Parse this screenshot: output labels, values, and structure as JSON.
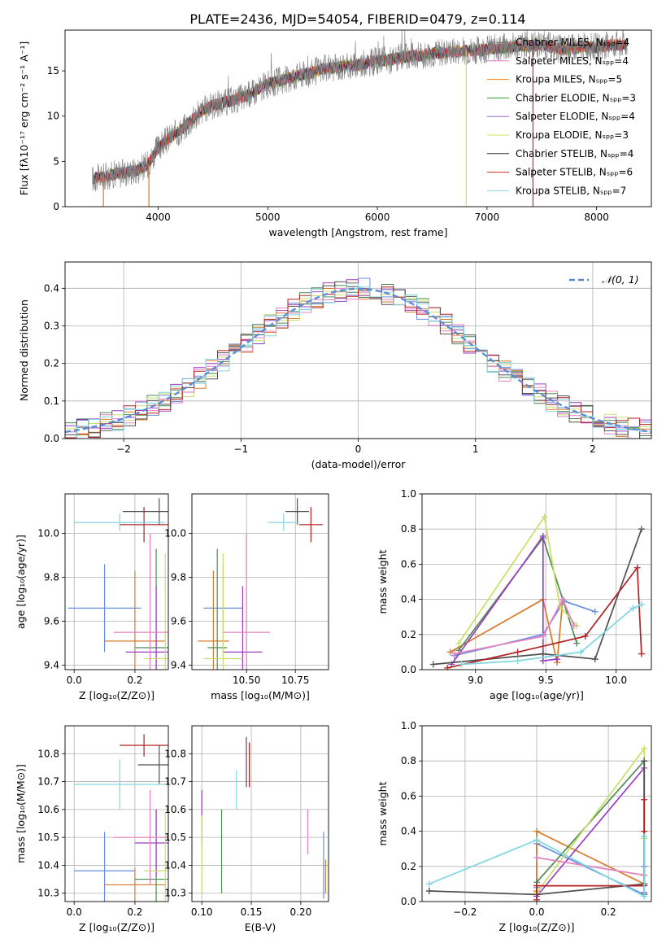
{
  "figure_title": "PLATE=2436, MJD=54054, FIBERID=0479, z=0.114",
  "colors": [
    "#888888",
    "#e377c2",
    "#ff7f0e",
    "#2ca02c",
    "#9467bd",
    "#d4e157",
    "#444444",
    "#d62728",
    "#7fd3e0"
  ],
  "ssp_colors": [
    "#6a8ee0",
    "#d97a28",
    "#4f8a55",
    "#9b3fc0",
    "#c8e06a",
    "#e680c0",
    "#505050",
    "#b22222",
    "#80d6e0"
  ],
  "chart_data": [
    {
      "id": "spectrum",
      "type": "line",
      "title": "PLATE=2436, MJD=54054, FIBERID=0479, z=0.114",
      "xlabel": "wavelength [Angstrom, rest frame]",
      "ylabel": "Flux [fλ10⁻¹⁷ erg cm⁻² s⁻¹ A⁻¹]",
      "xlim": [
        3150,
        8500
      ],
      "ylim": [
        0,
        19.5
      ],
      "xticks": [
        4000,
        5000,
        6000,
        7000,
        8000
      ],
      "yticks": [
        0,
        5,
        10,
        15
      ],
      "legend_position": "top-right",
      "legend": [
        "Chabrier MILES, Nₛₚₚ=4",
        "Salpeter MILES, Nₛₚₚ=4",
        "Kroupa MILES, Nₛₚₚ=5",
        "Chabrier ELODIE, Nₛₚₚ=3",
        "Salpeter ELODIE, Nₛₚₚ=4",
        "Kroupa ELODIE, Nₛₚₚ=3",
        "Chabrier STELIB, Nₛₚₚ=4",
        "Salpeter STELIB, Nₛₚₚ=6",
        "Kroupa STELIB, Nₛₚₚ=7"
      ],
      "series_colors": [
        "#808080",
        "#e377c2",
        "#ff7f0e",
        "#2ca02c",
        "#9467bd",
        "#d4e157",
        "#333333",
        "#d62728",
        "#7fd3e0"
      ],
      "continuum_x": [
        3400,
        3500,
        3600,
        3700,
        3800,
        3900,
        4000,
        4100,
        4200,
        4300,
        4400,
        4500,
        4600,
        4700,
        4800,
        4900,
        5000,
        5100,
        5200,
        5300,
        5400,
        5500,
        5600,
        5700,
        5800,
        5900,
        6000,
        6100,
        6200,
        6300,
        6400,
        6500,
        6600,
        6700,
        6800,
        6900,
        7000,
        7100,
        7200,
        7300,
        7400,
        7500,
        7600,
        7700,
        7800,
        7900,
        8000,
        8100,
        8200
      ],
      "continuum_y": [
        3.1,
        3.3,
        3.6,
        3.8,
        4.0,
        4.6,
        6.5,
        7.6,
        8.4,
        9.5,
        10.6,
        11.2,
        11.5,
        11.8,
        12.2,
        12.9,
        13.5,
        13.9,
        14.2,
        14.6,
        14.8,
        15.2,
        15.3,
        15.5,
        15.6,
        15.9,
        16.1,
        16.2,
        16.4,
        16.6,
        16.7,
        16.9,
        17.0,
        17.1,
        17.2,
        17.3,
        17.4,
        17.5,
        17.6,
        17.8,
        17.8,
        17.9,
        17.6,
        17.4,
        17.5,
        17.7,
        17.6,
        17.8,
        17.9
      ]
    },
    {
      "id": "residuals",
      "type": "line",
      "xlabel": "(data-model)/error",
      "ylabel": "Normed distribution",
      "xlim": [
        -2.5,
        2.5
      ],
      "ylim": [
        0,
        0.47
      ],
      "xticks": [
        -2,
        -1,
        0,
        1,
        2
      ],
      "yticks": [
        0.0,
        0.1,
        0.2,
        0.3,
        0.4
      ],
      "legend": [
        "𝒩(0, 1)"
      ],
      "legend_position": "top-right",
      "grid": true
    },
    {
      "id": "age-vs-Z",
      "type": "scatter",
      "xlabel": "Z [log₁₀(Z/Z⊙)]",
      "ylabel": "age  [log₁₀(age/yr)]",
      "xlim": [
        -0.03,
        0.31
      ],
      "ylim": [
        9.38,
        10.18
      ],
      "xticks": [
        0.0,
        0.2
      ],
      "yticks": [
        9.4,
        9.6,
        9.8,
        10.0
      ],
      "grid": true,
      "points": [
        {
          "x": 0.1,
          "y": 9.66,
          "xerr": 0.12,
          "yerr": 0.2
        },
        {
          "x": 0.2,
          "y": 9.51,
          "xerr": 0.1,
          "yerr": 0.32
        },
        {
          "x": 0.27,
          "y": 9.48,
          "xerr": 0.07,
          "yerr": 0.45
        },
        {
          "x": 0.27,
          "y": 9.46,
          "xerr": 0.1,
          "yerr": 0.3
        },
        {
          "x": 0.3,
          "y": 9.43,
          "xerr": 0.07,
          "yerr": 0.48
        },
        {
          "x": 0.25,
          "y": 9.55,
          "xerr": 0.12,
          "yerr": 0.45
        },
        {
          "x": 0.28,
          "y": 10.1,
          "xerr": 0.12,
          "yerr": 0.06
        },
        {
          "x": 0.23,
          "y": 10.04,
          "xerr": 0.08,
          "yerr": 0.08
        },
        {
          "x": 0.15,
          "y": 10.05,
          "xerr": 0.15,
          "yerr": 0.04
        }
      ]
    },
    {
      "id": "age-vs-mass",
      "type": "scatter",
      "xlabel": "mass [log₁₀(M/M⊙)]",
      "xlim": [
        10.22,
        10.92
      ],
      "ylim": [
        9.38,
        10.18
      ],
      "xticks": [
        10.5,
        10.75
      ],
      "xticklabels": [
        "10.50",
        "10.75"
      ],
      "yticks": [
        9.4,
        9.6,
        9.8,
        10.0
      ],
      "grid": true,
      "points": [
        {
          "x": 10.38,
          "y": 9.66,
          "xerr": 0.1,
          "yerr": 0.2
        },
        {
          "x": 10.33,
          "y": 9.51,
          "xerr": 0.08,
          "yerr": 0.32
        },
        {
          "x": 10.35,
          "y": 9.48,
          "xerr": 0.05,
          "yerr": 0.45
        },
        {
          "x": 10.48,
          "y": 9.46,
          "xerr": 0.1,
          "yerr": 0.3
        },
        {
          "x": 10.38,
          "y": 9.43,
          "xerr": 0.1,
          "yerr": 0.48
        },
        {
          "x": 10.5,
          "y": 9.55,
          "xerr": 0.12,
          "yerr": 0.45
        },
        {
          "x": 10.76,
          "y": 10.1,
          "xerr": 0.06,
          "yerr": 0.06
        },
        {
          "x": 10.83,
          "y": 10.04,
          "xerr": 0.06,
          "yerr": 0.08
        },
        {
          "x": 10.69,
          "y": 10.05,
          "xerr": 0.08,
          "yerr": 0.04
        }
      ]
    },
    {
      "id": "weight-vs-age",
      "type": "line",
      "xlabel": "age  [log₁₀(age/yr)]",
      "ylabel": "mass weight",
      "xlim": [
        8.62,
        10.25
      ],
      "ylim": [
        0,
        1.0
      ],
      "xticks": [
        9.0,
        9.5,
        10.0
      ],
      "yticks": [
        0.0,
        0.2,
        0.4,
        0.6,
        0.8,
        1.0
      ],
      "grid": true,
      "series": [
        {
          "x": [
            8.85,
            9.48,
            9.63,
            9.85
          ],
          "y": [
            0.08,
            0.2,
            0.39,
            0.33
          ]
        },
        {
          "x": [
            8.82,
            9.48,
            9.58,
            9.62
          ],
          "y": [
            0.1,
            0.4,
            0.04,
            0.4
          ]
        },
        {
          "x": [
            8.88,
            9.48,
            9.62,
            9.72
          ],
          "y": [
            0.11,
            0.75,
            0.4,
            0.15
          ]
        },
        {
          "x": [
            8.83,
            9.48,
            9.48,
            9.58
          ],
          "y": [
            0.03,
            0.76,
            0.05,
            0.06
          ]
        },
        {
          "x": [
            8.88,
            9.49,
            9.6,
            9.72
          ],
          "y": [
            0.15,
            0.87,
            0.36,
            0.25
          ]
        },
        {
          "x": [
            8.85,
            9.48,
            9.62,
            9.7
          ],
          "y": [
            0.09,
            0.19,
            0.4,
            0.25
          ]
        },
        {
          "x": [
            8.7,
            9.48,
            9.85,
            10.18
          ],
          "y": [
            0.03,
            0.09,
            0.06,
            0.8
          ]
        },
        {
          "x": [
            8.8,
            9.3,
            9.78,
            10.15,
            10.18
          ],
          "y": [
            0.01,
            0.1,
            0.19,
            0.58,
            0.09
          ]
        },
        {
          "x": [
            8.9,
            9.3,
            9.75,
            10.12,
            10.18
          ],
          "y": [
            0.03,
            0.05,
            0.1,
            0.35,
            0.37
          ]
        }
      ]
    },
    {
      "id": "mass-vs-Z",
      "type": "scatter",
      "xlabel": "Z [log₁₀(Z/Z⊙)]",
      "ylabel": "mass [log₁₀(M/M⊙)]",
      "xlim": [
        -0.03,
        0.31
      ],
      "ylim": [
        10.27,
        10.9
      ],
      "xticks": [
        0.0,
        0.2
      ],
      "yticks": [
        10.3,
        10.4,
        10.5,
        10.6,
        10.7,
        10.8
      ],
      "grid": true,
      "points": [
        {
          "x": 0.1,
          "y": 10.38,
          "xerr": 0.1,
          "yerr": 0.14
        },
        {
          "x": 0.2,
          "y": 10.33,
          "xerr": 0.1,
          "yerr": 0.06
        },
        {
          "x": 0.27,
          "y": 10.35,
          "xerr": 0.07,
          "yerr": 0.25
        },
        {
          "x": 0.27,
          "y": 10.48,
          "xerr": 0.07,
          "yerr": 0.12
        },
        {
          "x": 0.3,
          "y": 10.38,
          "xerr": 0.07,
          "yerr": 0.21
        },
        {
          "x": 0.25,
          "y": 10.5,
          "xerr": 0.12,
          "yerr": 0.17
        },
        {
          "x": 0.28,
          "y": 10.76,
          "xerr": 0.07,
          "yerr": 0.07
        },
        {
          "x": 0.23,
          "y": 10.83,
          "xerr": 0.08,
          "yerr": 0.04
        },
        {
          "x": 0.15,
          "y": 10.69,
          "xerr": 0.15,
          "yerr": 0.09
        }
      ]
    },
    {
      "id": "mass-vs-EBV",
      "type": "scatter",
      "xlabel": "E(B-V)",
      "xlim": [
        0.09,
        0.228
      ],
      "ylim": [
        10.27,
        10.9
      ],
      "xticks": [
        0.1,
        0.15,
        0.2
      ],
      "yticks": [
        10.3,
        10.4,
        10.5,
        10.6,
        10.7,
        10.8
      ],
      "grid": true,
      "points": [
        {
          "x": 0.223,
          "y": 10.4,
          "yerr": 0.12
        },
        {
          "x": 0.225,
          "y": 10.36,
          "yerr": 0.06
        },
        {
          "x": 0.12,
          "y": 10.45,
          "yerr": 0.15
        },
        {
          "x": 0.1,
          "y": 10.57,
          "yerr": 0.1
        },
        {
          "x": 0.1,
          "y": 10.44,
          "yerr": 0.14
        },
        {
          "x": 0.207,
          "y": 10.52,
          "yerr": 0.08
        },
        {
          "x": 0.145,
          "y": 10.77,
          "yerr": 0.09
        },
        {
          "x": 0.148,
          "y": 10.76,
          "yerr": 0.08
        },
        {
          "x": 0.135,
          "y": 10.67,
          "yerr": 0.07
        }
      ]
    },
    {
      "id": "weight-vs-Z",
      "type": "line",
      "xlabel": "Z [log₁₀(Z/Z⊙)]",
      "ylabel": "mass weight",
      "xlim": [
        -0.32,
        0.32
      ],
      "ylim": [
        0,
        1.0
      ],
      "xticks": [
        -0.2,
        0.0,
        0.2
      ],
      "yticks": [
        0.0,
        0.2,
        0.4,
        0.6,
        0.8,
        1.0
      ],
      "grid": true,
      "series": [
        {
          "x": [
            0.0,
            0.0,
            0.3,
            0.3
          ],
          "y": [
            0.08,
            0.33,
            0.04,
            0.2
          ]
        },
        {
          "x": [
            0.0,
            0.0,
            0.3,
            0.3
          ],
          "y": [
            0.06,
            0.4,
            0.1,
            0.4
          ]
        },
        {
          "x": [
            0.0,
            0.3,
            0.3,
            0.3
          ],
          "y": [
            0.11,
            0.8,
            0.04,
            0.15
          ]
        },
        {
          "x": [
            0.0,
            0.3,
            0.3
          ],
          "y": [
            0.03,
            0.76,
            0.05
          ]
        },
        {
          "x": [
            0.0,
            0.3,
            0.3
          ],
          "y": [
            0.05,
            0.87,
            0.36
          ]
        },
        {
          "x": [
            0.0,
            0.3,
            0.3
          ],
          "y": [
            0.25,
            0.15,
            0.1
          ]
        },
        {
          "x": [
            -0.3,
            0.0,
            0.3,
            0.3
          ],
          "y": [
            0.06,
            0.04,
            0.1,
            0.8
          ]
        },
        {
          "x": [
            0.0,
            0.0,
            0.3,
            0.3,
            0.3
          ],
          "y": [
            0.01,
            0.09,
            0.09,
            0.58,
            0.4
          ]
        },
        {
          "x": [
            -0.3,
            0.0,
            0.3,
            0.3
          ],
          "y": [
            0.1,
            0.35,
            0.03,
            0.37
          ]
        }
      ]
    }
  ]
}
